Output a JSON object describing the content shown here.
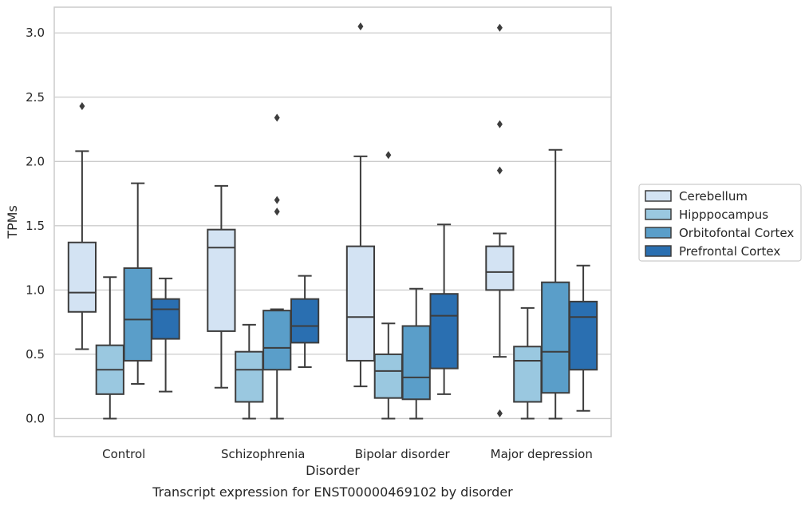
{
  "chart_data": {
    "type": "box",
    "caption": "Transcript expression for ENST00000469102 by disorder",
    "xlabel": "Disorder",
    "ylabel": "TPMs",
    "ylim": [
      -0.14,
      3.2
    ],
    "yticks": [
      "0.0",
      "0.5",
      "1.0",
      "1.5",
      "2.0",
      "2.5",
      "3.0"
    ],
    "grid": "horizontal",
    "legend_position": "right",
    "categories": [
      "Control",
      "Schizophrenia",
      "Bipolar disorder",
      "Major depression"
    ],
    "series": [
      {
        "name": "Cerebellum",
        "color": "#d3e3f3",
        "boxes": [
          {
            "whisker_low": 0.54,
            "q1": 0.83,
            "median": 0.98,
            "q3": 1.37,
            "whisker_high": 2.08,
            "outliers": [
              2.43
            ]
          },
          {
            "whisker_low": 0.24,
            "q1": 0.68,
            "median": 1.33,
            "q3": 1.47,
            "whisker_high": 1.81,
            "outliers": []
          },
          {
            "whisker_low": 0.25,
            "q1": 0.45,
            "median": 0.79,
            "q3": 1.34,
            "whisker_high": 2.04,
            "outliers": [
              3.05
            ]
          },
          {
            "whisker_low": 0.48,
            "q1": 1.0,
            "median": 1.14,
            "q3": 1.34,
            "whisker_high": 1.44,
            "outliers": [
              0.04,
              1.93,
              2.29,
              3.04
            ]
          }
        ]
      },
      {
        "name": "Hipppocampus",
        "color": "#9ac8e0",
        "boxes": [
          {
            "whisker_low": 0.0,
            "q1": 0.19,
            "median": 0.38,
            "q3": 0.57,
            "whisker_high": 1.1,
            "outliers": []
          },
          {
            "whisker_low": 0.0,
            "q1": 0.13,
            "median": 0.38,
            "q3": 0.52,
            "whisker_high": 0.73,
            "outliers": []
          },
          {
            "whisker_low": 0.0,
            "q1": 0.16,
            "median": 0.37,
            "q3": 0.5,
            "whisker_high": 0.74,
            "outliers": [
              2.05
            ]
          },
          {
            "whisker_low": 0.0,
            "q1": 0.13,
            "median": 0.45,
            "q3": 0.56,
            "whisker_high": 0.86,
            "outliers": []
          }
        ]
      },
      {
        "name": "Orbitofontal Cortex",
        "color": "#5a9ec9",
        "boxes": [
          {
            "whisker_low": 0.27,
            "q1": 0.45,
            "median": 0.77,
            "q3": 1.17,
            "whisker_high": 1.83,
            "outliers": []
          },
          {
            "whisker_low": 0.0,
            "q1": 0.38,
            "median": 0.55,
            "q3": 0.84,
            "whisker_high": 0.85,
            "outliers": [
              1.61,
              1.7,
              2.34
            ]
          },
          {
            "whisker_low": 0.0,
            "q1": 0.15,
            "median": 0.32,
            "q3": 0.72,
            "whisker_high": 1.01,
            "outliers": []
          },
          {
            "whisker_low": 0.0,
            "q1": 0.2,
            "median": 0.52,
            "q3": 1.06,
            "whisker_high": 2.09,
            "outliers": []
          }
        ]
      },
      {
        "name": "Prefrontal Cortex",
        "color": "#2a6fb1",
        "boxes": [
          {
            "whisker_low": 0.21,
            "q1": 0.62,
            "median": 0.85,
            "q3": 0.93,
            "whisker_high": 1.09,
            "outliers": []
          },
          {
            "whisker_low": 0.4,
            "q1": 0.59,
            "median": 0.72,
            "q3": 0.93,
            "whisker_high": 1.11,
            "outliers": []
          },
          {
            "whisker_low": 0.19,
            "q1": 0.39,
            "median": 0.8,
            "q3": 0.97,
            "whisker_high": 1.51,
            "outliers": []
          },
          {
            "whisker_low": 0.06,
            "q1": 0.38,
            "median": 0.79,
            "q3": 0.91,
            "whisker_high": 1.19,
            "outliers": []
          }
        ]
      }
    ]
  }
}
